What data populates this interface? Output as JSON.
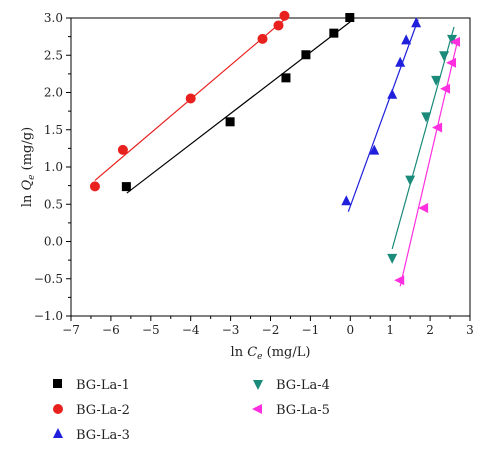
{
  "chart_data": {
    "type": "scatter",
    "xlabel": "ln C_e (mg/L)",
    "ylabel": "ln Q_e (mg/g)",
    "xlim": [
      -7,
      3
    ],
    "ylim": [
      -1.0,
      3.0
    ],
    "x_ticks": [
      -7,
      -6,
      -5,
      -4,
      -3,
      -2,
      -1,
      0,
      1,
      2,
      3
    ],
    "y_ticks": [
      -1.0,
      -0.5,
      0.0,
      0.5,
      1.0,
      1.5,
      2.0,
      2.5,
      3.0
    ],
    "grid": false,
    "legend_position": "bottom",
    "series": [
      {
        "name": "BG-La-1",
        "marker": "square",
        "color": "#000000",
        "points": [
          [
            -5.6,
            0.73
          ],
          [
            -3.0,
            1.6
          ],
          [
            -1.6,
            2.19
          ],
          [
            -1.1,
            2.5
          ],
          [
            -0.4,
            2.79
          ],
          [
            0.0,
            3.0
          ]
        ],
        "fit": [
          [
            -5.6,
            0.65
          ],
          [
            0.0,
            2.95
          ]
        ]
      },
      {
        "name": "BG-La-2",
        "marker": "circle",
        "color": "#e8201e",
        "points": [
          [
            -6.4,
            0.74
          ],
          [
            -5.7,
            1.23
          ],
          [
            -4.0,
            1.92
          ],
          [
            -2.2,
            2.72
          ],
          [
            -1.8,
            2.9
          ],
          [
            -1.65,
            3.03
          ]
        ],
        "fit": [
          [
            -6.4,
            0.82
          ],
          [
            -1.65,
            2.98
          ]
        ]
      },
      {
        "name": "BG-La-3",
        "marker": "triangle-up",
        "color": "#1f1fdc",
        "points": [
          [
            -0.1,
            0.54
          ],
          [
            0.6,
            1.22
          ],
          [
            1.05,
            1.97
          ],
          [
            1.25,
            2.4
          ],
          [
            1.4,
            2.7
          ],
          [
            1.65,
            2.93
          ]
        ],
        "fit": [
          [
            -0.05,
            0.4
          ],
          [
            1.7,
            2.98
          ]
        ]
      },
      {
        "name": "BG-La-4",
        "marker": "triangle-down",
        "color": "#1a8a7a",
        "points": [
          [
            1.05,
            -0.22
          ],
          [
            1.5,
            0.83
          ],
          [
            1.9,
            1.68
          ],
          [
            2.15,
            2.17
          ],
          [
            2.35,
            2.5
          ],
          [
            2.55,
            2.72
          ]
        ],
        "fit": [
          [
            1.05,
            -0.1
          ],
          [
            2.6,
            2.88
          ]
        ]
      },
      {
        "name": "BG-La-5",
        "marker": "triangle-left",
        "color": "#ff2fe0",
        "points": [
          [
            1.25,
            -0.52
          ],
          [
            1.85,
            0.45
          ],
          [
            2.2,
            1.53
          ],
          [
            2.4,
            2.05
          ],
          [
            2.55,
            2.4
          ],
          [
            2.65,
            2.68
          ]
        ],
        "fit": [
          [
            1.25,
            -0.6
          ],
          [
            2.7,
            2.72
          ]
        ]
      }
    ]
  }
}
